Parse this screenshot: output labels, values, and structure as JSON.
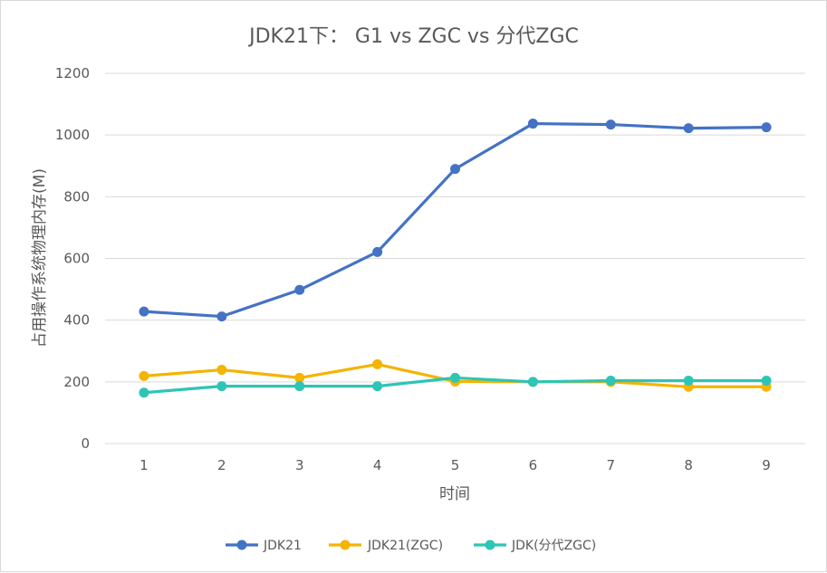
{
  "chart_data": {
    "type": "line",
    "title": "JDK21下： G1 vs ZGC vs 分代ZGC",
    "xlabel": "时间",
    "ylabel": "占用操作系统物理内存(M)",
    "x": [
      1,
      2,
      3,
      4,
      5,
      6,
      7,
      8,
      9
    ],
    "ylim": [
      0,
      1200
    ],
    "yticks": [
      0,
      200,
      400,
      600,
      800,
      1000,
      1200
    ],
    "grid": true,
    "legend": "bottom",
    "series": [
      {
        "name": "JDK21",
        "color": "#4472c4",
        "values": [
          428,
          412,
          498,
          621,
          890,
          1037,
          1034,
          1022,
          1025
        ]
      },
      {
        "name": "JDK21(ZGC)",
        "color": "#f4b400",
        "values": [
          219,
          239,
          213,
          257,
          201,
          200,
          200,
          184,
          184
        ]
      },
      {
        "name": "JDK(分代ZGC)",
        "color": "#2ec4b6",
        "values": [
          165,
          186,
          186,
          186,
          213,
          200,
          204,
          204,
          204
        ]
      }
    ]
  }
}
